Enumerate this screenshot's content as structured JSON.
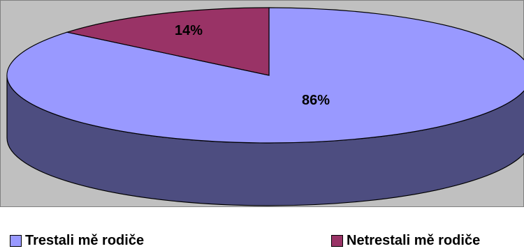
{
  "chart_data": {
    "type": "pie",
    "title": "",
    "style": "3d",
    "slices": [
      {
        "label": "Trestali mě rodiče",
        "value": 86,
        "value_label": "86%",
        "color": "#9999ff"
      },
      {
        "label": "Netrestali mě rodiče",
        "value": 14,
        "value_label": "14%",
        "color": "#993366"
      }
    ],
    "plot_area_color": "#c0c0c0",
    "legend_position": "bottom"
  }
}
